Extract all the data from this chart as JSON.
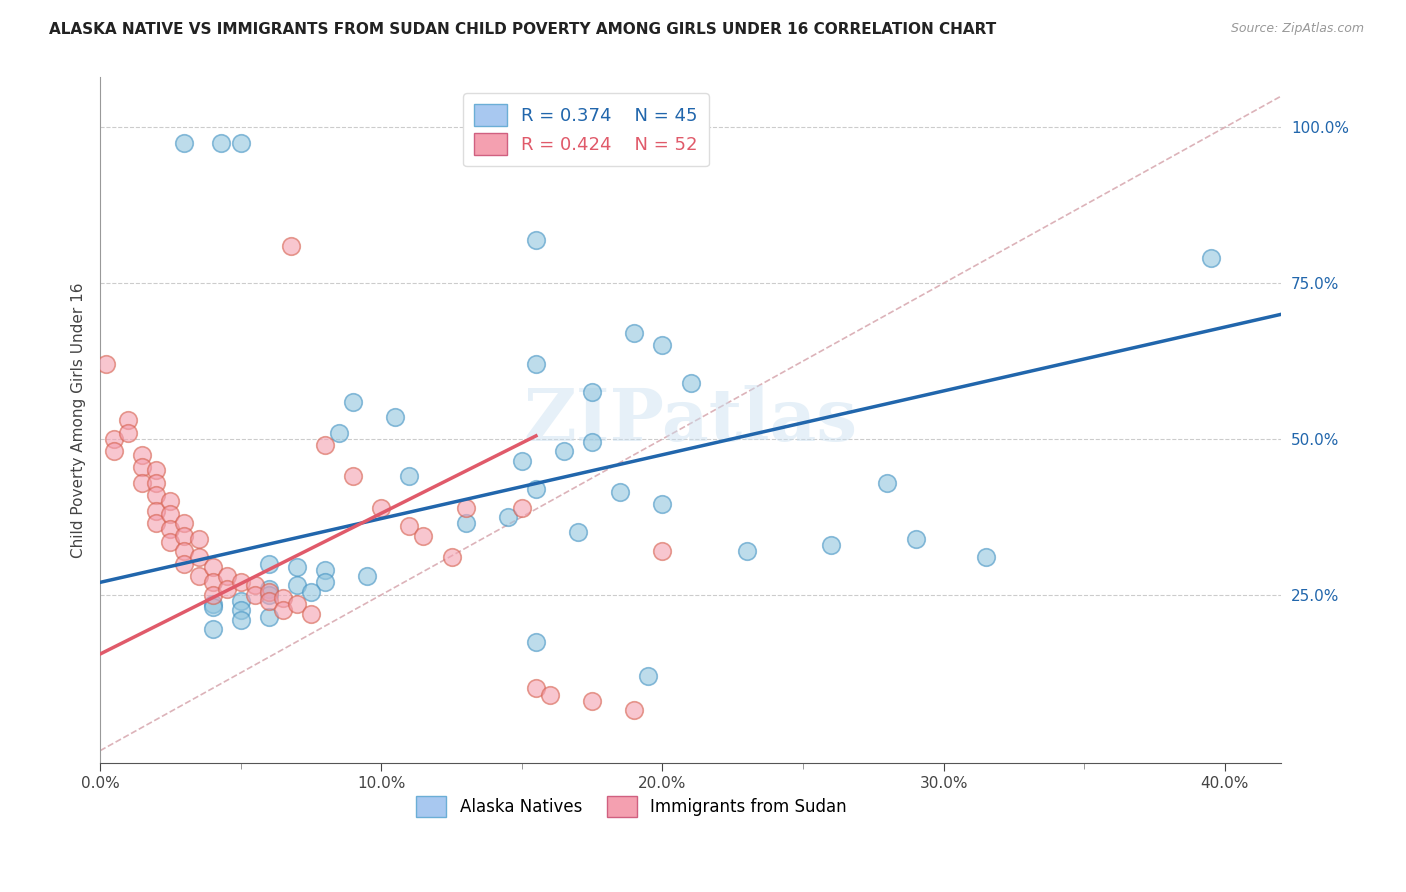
{
  "title": "ALASKA NATIVE VS IMMIGRANTS FROM SUDAN CHILD POVERTY AMONG GIRLS UNDER 16 CORRELATION CHART",
  "source": "Source: ZipAtlas.com",
  "ylabel": "Child Poverty Among Girls Under 16",
  "x_tick_labels": [
    "0.0%",
    "10.0%",
    "20.0%",
    "30.0%",
    "40.0%"
  ],
  "x_tick_values": [
    0.0,
    0.1,
    0.2,
    0.3,
    0.4
  ],
  "y_tick_labels": [
    "25.0%",
    "50.0%",
    "75.0%",
    "100.0%"
  ],
  "y_tick_values": [
    0.25,
    0.5,
    0.75,
    1.0
  ],
  "xlim": [
    0.0,
    0.42
  ],
  "ylim": [
    -0.02,
    1.08
  ],
  "watermark": "ZIPatlas",
  "blue_color": "#92c5de",
  "pink_color": "#f4a0b0",
  "blue_edge_color": "#4393c3",
  "pink_edge_color": "#d6604d",
  "blue_line_color": "#2166ac",
  "pink_line_color": "#e05a6a",
  "blue_scatter": [
    [
      0.03,
      0.975
    ],
    [
      0.043,
      0.975
    ],
    [
      0.05,
      0.975
    ],
    [
      0.155,
      0.82
    ],
    [
      0.19,
      0.67
    ],
    [
      0.2,
      0.65
    ],
    [
      0.155,
      0.62
    ],
    [
      0.21,
      0.59
    ],
    [
      0.175,
      0.575
    ],
    [
      0.09,
      0.56
    ],
    [
      0.105,
      0.535
    ],
    [
      0.085,
      0.51
    ],
    [
      0.175,
      0.495
    ],
    [
      0.165,
      0.48
    ],
    [
      0.15,
      0.465
    ],
    [
      0.11,
      0.44
    ],
    [
      0.28,
      0.43
    ],
    [
      0.155,
      0.42
    ],
    [
      0.185,
      0.415
    ],
    [
      0.2,
      0.395
    ],
    [
      0.145,
      0.375
    ],
    [
      0.13,
      0.365
    ],
    [
      0.17,
      0.35
    ],
    [
      0.29,
      0.34
    ],
    [
      0.26,
      0.33
    ],
    [
      0.23,
      0.32
    ],
    [
      0.315,
      0.31
    ],
    [
      0.06,
      0.3
    ],
    [
      0.07,
      0.295
    ],
    [
      0.08,
      0.29
    ],
    [
      0.095,
      0.28
    ],
    [
      0.08,
      0.27
    ],
    [
      0.07,
      0.265
    ],
    [
      0.06,
      0.26
    ],
    [
      0.075,
      0.255
    ],
    [
      0.06,
      0.25
    ],
    [
      0.05,
      0.24
    ],
    [
      0.04,
      0.235
    ],
    [
      0.04,
      0.23
    ],
    [
      0.05,
      0.225
    ],
    [
      0.06,
      0.215
    ],
    [
      0.05,
      0.21
    ],
    [
      0.04,
      0.195
    ],
    [
      0.155,
      0.175
    ],
    [
      0.195,
      0.12
    ],
    [
      0.395,
      0.79
    ]
  ],
  "pink_scatter": [
    [
      0.002,
      0.62
    ],
    [
      0.005,
      0.5
    ],
    [
      0.005,
      0.48
    ],
    [
      0.01,
      0.53
    ],
    [
      0.01,
      0.51
    ],
    [
      0.015,
      0.475
    ],
    [
      0.015,
      0.455
    ],
    [
      0.015,
      0.43
    ],
    [
      0.02,
      0.45
    ],
    [
      0.02,
      0.43
    ],
    [
      0.02,
      0.41
    ],
    [
      0.02,
      0.385
    ],
    [
      0.02,
      0.365
    ],
    [
      0.025,
      0.4
    ],
    [
      0.025,
      0.38
    ],
    [
      0.025,
      0.355
    ],
    [
      0.025,
      0.335
    ],
    [
      0.03,
      0.365
    ],
    [
      0.03,
      0.345
    ],
    [
      0.03,
      0.32
    ],
    [
      0.03,
      0.3
    ],
    [
      0.035,
      0.34
    ],
    [
      0.035,
      0.31
    ],
    [
      0.035,
      0.28
    ],
    [
      0.04,
      0.295
    ],
    [
      0.04,
      0.27
    ],
    [
      0.04,
      0.25
    ],
    [
      0.045,
      0.28
    ],
    [
      0.045,
      0.26
    ],
    [
      0.05,
      0.27
    ],
    [
      0.055,
      0.265
    ],
    [
      0.055,
      0.25
    ],
    [
      0.06,
      0.255
    ],
    [
      0.06,
      0.24
    ],
    [
      0.065,
      0.245
    ],
    [
      0.065,
      0.225
    ],
    [
      0.068,
      0.81
    ],
    [
      0.07,
      0.235
    ],
    [
      0.075,
      0.22
    ],
    [
      0.08,
      0.49
    ],
    [
      0.09,
      0.44
    ],
    [
      0.1,
      0.39
    ],
    [
      0.11,
      0.36
    ],
    [
      0.115,
      0.345
    ],
    [
      0.125,
      0.31
    ],
    [
      0.13,
      0.39
    ],
    [
      0.15,
      0.39
    ],
    [
      0.155,
      0.1
    ],
    [
      0.16,
      0.09
    ],
    [
      0.175,
      0.08
    ],
    [
      0.19,
      0.065
    ],
    [
      0.2,
      0.32
    ]
  ],
  "blue_line": {
    "x0": 0.0,
    "x1": 0.42,
    "y0": 0.27,
    "y1": 0.7
  },
  "pink_line": {
    "x0": 0.0,
    "x1": 0.155,
    "y0": 0.155,
    "y1": 0.505
  },
  "ref_line": {
    "x0": 0.0,
    "x1": 0.42,
    "y0": 0.0,
    "y1": 1.05
  },
  "background_color": "#ffffff",
  "grid_color": "#cccccc"
}
